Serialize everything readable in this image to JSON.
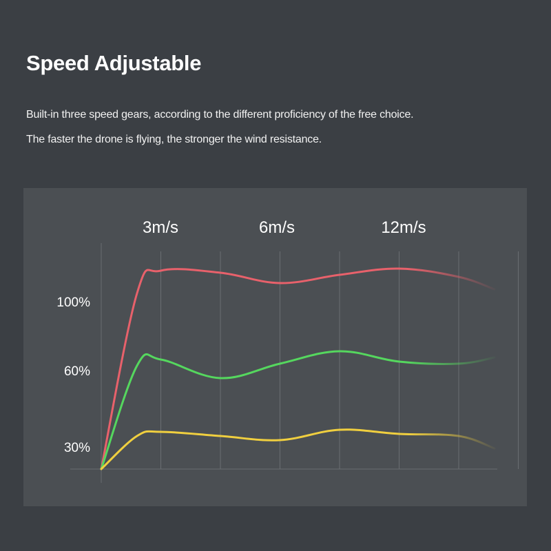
{
  "header": {
    "title": "Speed Adjustable",
    "description_lines": [
      "Built-in three speed gears, according to the different proficiency of the free choice.",
      "The faster the drone is flying, the stronger the wind resistance."
    ]
  },
  "chart_data": {
    "type": "line",
    "speed_labels": [
      "3m/s",
      "6m/s",
      "12m/s"
    ],
    "y_tick_labels": [
      "100%",
      "60%",
      "30%"
    ],
    "grid": "vertical",
    "series": [
      {
        "color": "#e8616b",
        "points": [
          [
            0,
            0
          ],
          [
            0.6,
            85
          ],
          [
            1,
            96
          ],
          [
            2,
            95
          ],
          [
            3,
            90
          ],
          [
            4,
            94
          ],
          [
            5,
            97
          ],
          [
            6,
            93
          ],
          [
            6.6,
            87
          ]
        ]
      },
      {
        "color": "#55d75e",
        "points": [
          [
            0,
            0
          ],
          [
            0.6,
            50
          ],
          [
            1,
            53
          ],
          [
            2,
            44
          ],
          [
            3,
            51
          ],
          [
            4,
            57
          ],
          [
            5,
            52
          ],
          [
            6,
            51
          ],
          [
            6.6,
            54
          ]
        ]
      },
      {
        "color": "#f0cf3f",
        "points": [
          [
            0,
            0
          ],
          [
            0.6,
            16
          ],
          [
            1,
            18
          ],
          [
            2,
            16
          ],
          [
            3,
            14
          ],
          [
            4,
            19
          ],
          [
            5,
            17
          ],
          [
            6,
            16
          ],
          [
            6.6,
            10
          ]
        ]
      }
    ],
    "colors": {
      "background": "#3b3f44",
      "panel": "#4b4f53",
      "gridline": "#6a6e72"
    }
  }
}
